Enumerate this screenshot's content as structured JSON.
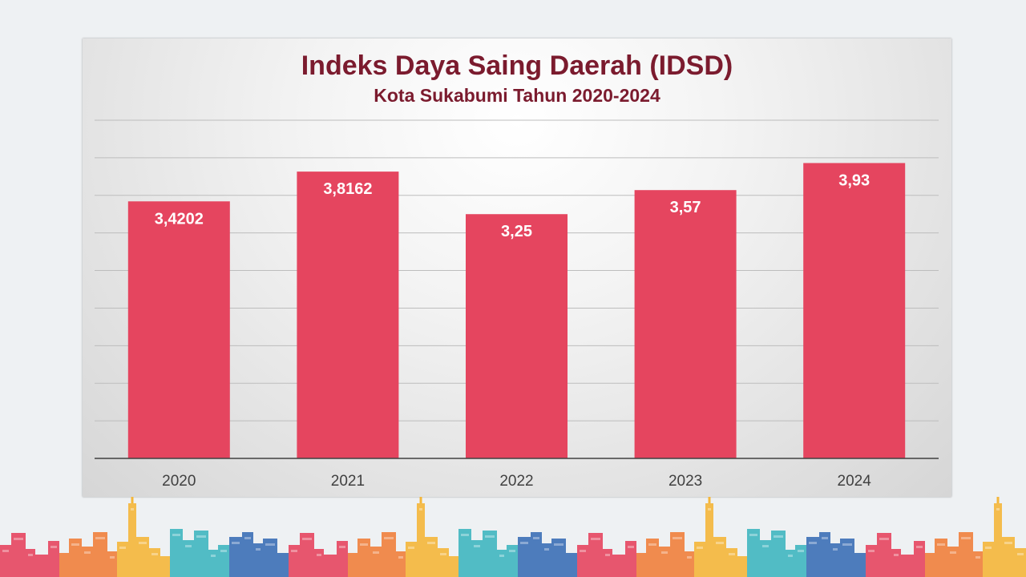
{
  "chart_data": {
    "type": "bar",
    "title": "Indeks Daya Saing Daerah (IDSD)",
    "subtitle": "Kota Sukabumi Tahun 2020-2024",
    "categories": [
      "2020",
      "2021",
      "2022",
      "2023",
      "2024"
    ],
    "values": [
      3.4202,
      3.8162,
      3.25,
      3.57,
      3.93
    ],
    "value_labels": [
      "3,4202",
      "3,8162",
      "3,25",
      "3,57",
      "3,93"
    ],
    "ylim": [
      0,
      4.5
    ],
    "grid": true,
    "bar_color": "#e5455f",
    "label_color": "#ffffff",
    "xlabel": "",
    "ylabel": ""
  },
  "colors": {
    "title": "#7b1b2e",
    "skyline": [
      "#e5455f",
      "#f0803c",
      "#f4b63a",
      "#3fb6c0",
      "#3b6fb6"
    ]
  }
}
